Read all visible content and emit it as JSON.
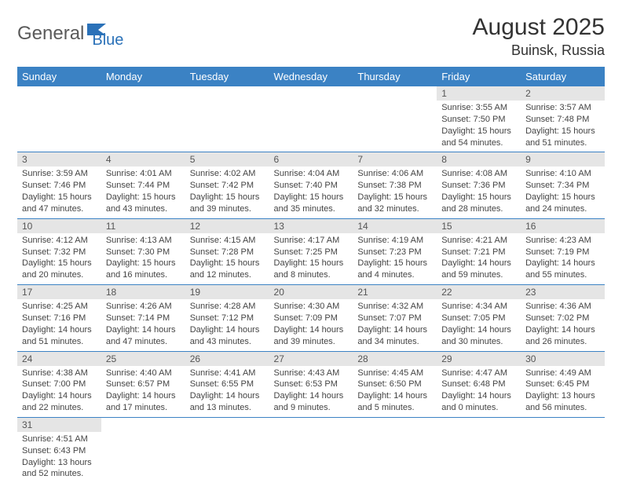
{
  "brand": {
    "part1": "General",
    "part2": "Blue"
  },
  "title": "August 2025",
  "location": "Buinsk, Russia",
  "colors": {
    "header_bg": "#3b82c4",
    "header_fg": "#ffffff",
    "daynum_bg": "#e5e5e5",
    "rule": "#3b82c4",
    "brand_gray": "#5a5a5a",
    "brand_blue": "#2a71b8"
  },
  "weekdays": [
    "Sunday",
    "Monday",
    "Tuesday",
    "Wednesday",
    "Thursday",
    "Friday",
    "Saturday"
  ],
  "weeks": [
    [
      null,
      null,
      null,
      null,
      null,
      {
        "n": "1",
        "sr": "Sunrise: 3:55 AM",
        "ss": "Sunset: 7:50 PM",
        "d1": "Daylight: 15 hours",
        "d2": "and 54 minutes."
      },
      {
        "n": "2",
        "sr": "Sunrise: 3:57 AM",
        "ss": "Sunset: 7:48 PM",
        "d1": "Daylight: 15 hours",
        "d2": "and 51 minutes."
      }
    ],
    [
      {
        "n": "3",
        "sr": "Sunrise: 3:59 AM",
        "ss": "Sunset: 7:46 PM",
        "d1": "Daylight: 15 hours",
        "d2": "and 47 minutes."
      },
      {
        "n": "4",
        "sr": "Sunrise: 4:01 AM",
        "ss": "Sunset: 7:44 PM",
        "d1": "Daylight: 15 hours",
        "d2": "and 43 minutes."
      },
      {
        "n": "5",
        "sr": "Sunrise: 4:02 AM",
        "ss": "Sunset: 7:42 PM",
        "d1": "Daylight: 15 hours",
        "d2": "and 39 minutes."
      },
      {
        "n": "6",
        "sr": "Sunrise: 4:04 AM",
        "ss": "Sunset: 7:40 PM",
        "d1": "Daylight: 15 hours",
        "d2": "and 35 minutes."
      },
      {
        "n": "7",
        "sr": "Sunrise: 4:06 AM",
        "ss": "Sunset: 7:38 PM",
        "d1": "Daylight: 15 hours",
        "d2": "and 32 minutes."
      },
      {
        "n": "8",
        "sr": "Sunrise: 4:08 AM",
        "ss": "Sunset: 7:36 PM",
        "d1": "Daylight: 15 hours",
        "d2": "and 28 minutes."
      },
      {
        "n": "9",
        "sr": "Sunrise: 4:10 AM",
        "ss": "Sunset: 7:34 PM",
        "d1": "Daylight: 15 hours",
        "d2": "and 24 minutes."
      }
    ],
    [
      {
        "n": "10",
        "sr": "Sunrise: 4:12 AM",
        "ss": "Sunset: 7:32 PM",
        "d1": "Daylight: 15 hours",
        "d2": "and 20 minutes."
      },
      {
        "n": "11",
        "sr": "Sunrise: 4:13 AM",
        "ss": "Sunset: 7:30 PM",
        "d1": "Daylight: 15 hours",
        "d2": "and 16 minutes."
      },
      {
        "n": "12",
        "sr": "Sunrise: 4:15 AM",
        "ss": "Sunset: 7:28 PM",
        "d1": "Daylight: 15 hours",
        "d2": "and 12 minutes."
      },
      {
        "n": "13",
        "sr": "Sunrise: 4:17 AM",
        "ss": "Sunset: 7:25 PM",
        "d1": "Daylight: 15 hours",
        "d2": "and 8 minutes."
      },
      {
        "n": "14",
        "sr": "Sunrise: 4:19 AM",
        "ss": "Sunset: 7:23 PM",
        "d1": "Daylight: 15 hours",
        "d2": "and 4 minutes."
      },
      {
        "n": "15",
        "sr": "Sunrise: 4:21 AM",
        "ss": "Sunset: 7:21 PM",
        "d1": "Daylight: 14 hours",
        "d2": "and 59 minutes."
      },
      {
        "n": "16",
        "sr": "Sunrise: 4:23 AM",
        "ss": "Sunset: 7:19 PM",
        "d1": "Daylight: 14 hours",
        "d2": "and 55 minutes."
      }
    ],
    [
      {
        "n": "17",
        "sr": "Sunrise: 4:25 AM",
        "ss": "Sunset: 7:16 PM",
        "d1": "Daylight: 14 hours",
        "d2": "and 51 minutes."
      },
      {
        "n": "18",
        "sr": "Sunrise: 4:26 AM",
        "ss": "Sunset: 7:14 PM",
        "d1": "Daylight: 14 hours",
        "d2": "and 47 minutes."
      },
      {
        "n": "19",
        "sr": "Sunrise: 4:28 AM",
        "ss": "Sunset: 7:12 PM",
        "d1": "Daylight: 14 hours",
        "d2": "and 43 minutes."
      },
      {
        "n": "20",
        "sr": "Sunrise: 4:30 AM",
        "ss": "Sunset: 7:09 PM",
        "d1": "Daylight: 14 hours",
        "d2": "and 39 minutes."
      },
      {
        "n": "21",
        "sr": "Sunrise: 4:32 AM",
        "ss": "Sunset: 7:07 PM",
        "d1": "Daylight: 14 hours",
        "d2": "and 34 minutes."
      },
      {
        "n": "22",
        "sr": "Sunrise: 4:34 AM",
        "ss": "Sunset: 7:05 PM",
        "d1": "Daylight: 14 hours",
        "d2": "and 30 minutes."
      },
      {
        "n": "23",
        "sr": "Sunrise: 4:36 AM",
        "ss": "Sunset: 7:02 PM",
        "d1": "Daylight: 14 hours",
        "d2": "and 26 minutes."
      }
    ],
    [
      {
        "n": "24",
        "sr": "Sunrise: 4:38 AM",
        "ss": "Sunset: 7:00 PM",
        "d1": "Daylight: 14 hours",
        "d2": "and 22 minutes."
      },
      {
        "n": "25",
        "sr": "Sunrise: 4:40 AM",
        "ss": "Sunset: 6:57 PM",
        "d1": "Daylight: 14 hours",
        "d2": "and 17 minutes."
      },
      {
        "n": "26",
        "sr": "Sunrise: 4:41 AM",
        "ss": "Sunset: 6:55 PM",
        "d1": "Daylight: 14 hours",
        "d2": "and 13 minutes."
      },
      {
        "n": "27",
        "sr": "Sunrise: 4:43 AM",
        "ss": "Sunset: 6:53 PM",
        "d1": "Daylight: 14 hours",
        "d2": "and 9 minutes."
      },
      {
        "n": "28",
        "sr": "Sunrise: 4:45 AM",
        "ss": "Sunset: 6:50 PM",
        "d1": "Daylight: 14 hours",
        "d2": "and 5 minutes."
      },
      {
        "n": "29",
        "sr": "Sunrise: 4:47 AM",
        "ss": "Sunset: 6:48 PM",
        "d1": "Daylight: 14 hours",
        "d2": "and 0 minutes."
      },
      {
        "n": "30",
        "sr": "Sunrise: 4:49 AM",
        "ss": "Sunset: 6:45 PM",
        "d1": "Daylight: 13 hours",
        "d2": "and 56 minutes."
      }
    ],
    [
      {
        "n": "31",
        "sr": "Sunrise: 4:51 AM",
        "ss": "Sunset: 6:43 PM",
        "d1": "Daylight: 13 hours",
        "d2": "and 52 minutes."
      },
      null,
      null,
      null,
      null,
      null,
      null
    ]
  ]
}
